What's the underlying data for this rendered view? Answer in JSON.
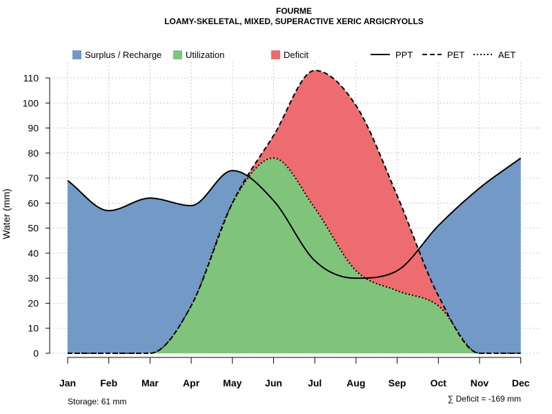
{
  "chart_data": {
    "type": "area",
    "title": "FOURME",
    "subtitle": "LOAMY-SKELETAL, MIXED, SUPERACTIVE XERIC ARGICRYOLLS",
    "ylabel": "Water (mm)",
    "xlabel": "",
    "categories": [
      "Jan",
      "Feb",
      "Mar",
      "Apr",
      "May",
      "Jun",
      "Jul",
      "Aug",
      "Sep",
      "Oct",
      "Nov",
      "Dec"
    ],
    "ylim": [
      0,
      115
    ],
    "yticks": [
      0,
      10,
      20,
      30,
      40,
      50,
      60,
      70,
      80,
      90,
      100,
      110
    ],
    "grid": true,
    "series": [
      {
        "name": "PPT",
        "style": "solid",
        "values": [
          69,
          57,
          62,
          59,
          73,
          61,
          37,
          30,
          33,
          51,
          66,
          78
        ]
      },
      {
        "name": "PET",
        "style": "dashed",
        "values": [
          0,
          0,
          0,
          19,
          60,
          87,
          113,
          99,
          63,
          23,
          0,
          0
        ]
      },
      {
        "name": "AET",
        "style": "dotted",
        "values": [
          0,
          0,
          0,
          19,
          60,
          78,
          58,
          33,
          25,
          19,
          0,
          0
        ]
      }
    ],
    "legend": {
      "position": "top",
      "areas": [
        {
          "label": "Surplus / Recharge",
          "color": "#7399c6"
        },
        {
          "label": "Utilization",
          "color": "#80c47c"
        },
        {
          "label": "Deficit",
          "color": "#ec6c6f"
        }
      ],
      "lines": [
        {
          "label": "PPT",
          "style": "solid"
        },
        {
          "label": "PET",
          "style": "dashed"
        },
        {
          "label": "AET",
          "style": "dotted"
        }
      ]
    },
    "annotations": {
      "storage": "Storage: 61 mm",
      "deficit": "∑ Deficit = -169 mm"
    }
  }
}
